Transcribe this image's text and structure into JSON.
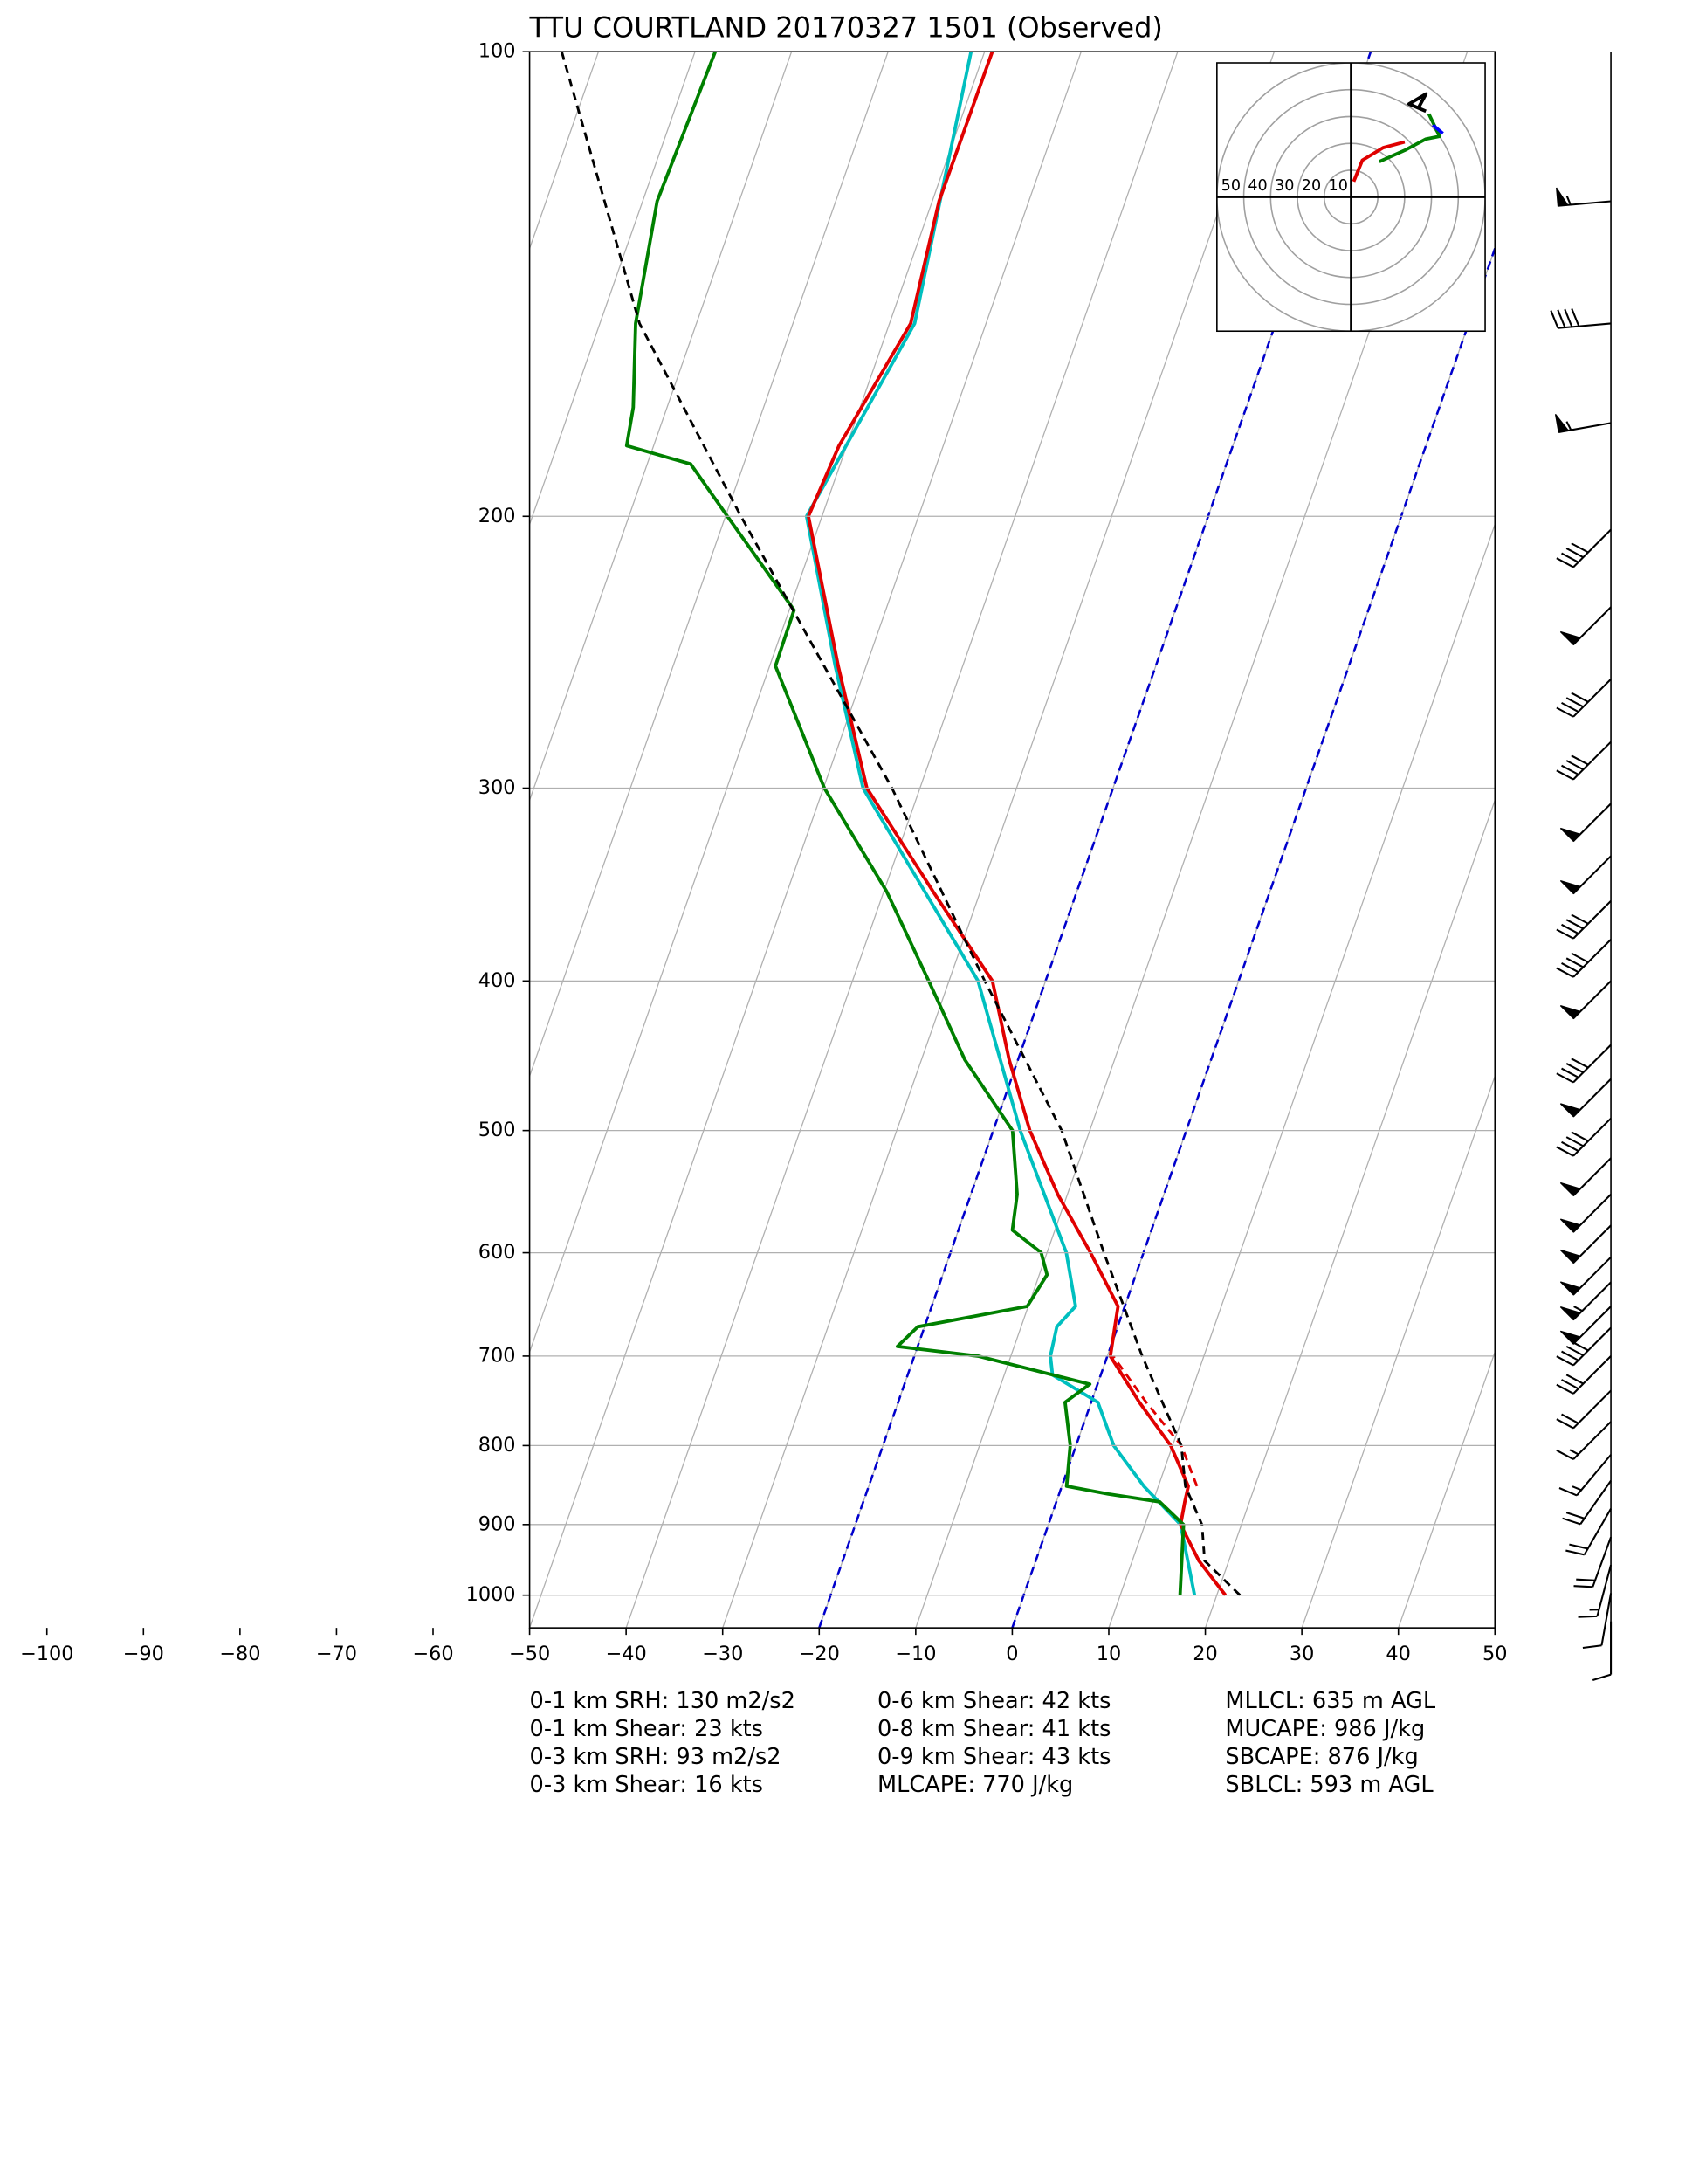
{
  "chart_data": {
    "type": "skewt",
    "title": "TTU COURTLAND 20170327 1501   (Observed)",
    "xlim": [
      -50,
      50
    ],
    "ylim": [
      1050,
      100
    ],
    "log_y": true,
    "grid": true,
    "xticks": [
      {
        "value": -100,
        "label": "−100"
      },
      {
        "value": -90,
        "label": "−90"
      },
      {
        "value": -80,
        "label": "−80"
      },
      {
        "value": -70,
        "label": "−70"
      },
      {
        "value": -60,
        "label": "−60"
      },
      {
        "value": -50,
        "label": "−50"
      },
      {
        "value": -40,
        "label": "−40"
      },
      {
        "value": -30,
        "label": "−30"
      },
      {
        "value": -20,
        "label": "−20"
      },
      {
        "value": -10,
        "label": "−10"
      },
      0,
      10,
      20,
      30,
      40,
      50
    ],
    "yticks": [
      100,
      200,
      300,
      400,
      500,
      600,
      700,
      800,
      900,
      1000
    ],
    "highlight_isotherms": {
      "color": "#0000cc",
      "values": [
        -20,
        0
      ]
    },
    "series": [
      {
        "color": "#00bfbf",
        "dashed": false,
        "pressure": [
          1000,
          900,
          850,
          800,
          750,
          720,
          700,
          670,
          650,
          600,
          500,
          400,
          300,
          250,
          200,
          150,
          100
        ],
        "temperature": [
          17.7,
          13.7,
          8.5,
          3.9,
          0.7,
          -5.0,
          -5.9,
          -6.3,
          -5.1,
          -8.0,
          -17.2,
          -27.0,
          -45.9,
          -53.2,
          -61.6,
          -57.4,
          -61.4
        ]
      },
      {
        "color": "#e00000",
        "dashed": false,
        "pressure": [
          1000,
          950,
          900,
          870,
          850,
          800,
          750,
          700,
          650,
          600,
          550,
          500,
          450,
          400,
          350,
          300,
          250,
          200,
          180,
          150,
          125,
          100
        ],
        "temperature": [
          20.9,
          16.9,
          13.7,
          13.3,
          13.1,
          9.8,
          5.0,
          0.3,
          -0.7,
          -5.5,
          -11.0,
          -16.2,
          -20.9,
          -25.5,
          -34.9,
          -45.5,
          -52.9,
          -61.4,
          -60.8,
          -57.8,
          -59.3,
          -59.2
        ]
      },
      {
        "color": "#e00000",
        "dashed": true,
        "pressure": [
          850,
          800,
          750,
          700
        ],
        "temperature": [
          14.0,
          10.9,
          5.7,
          0.6
        ]
      },
      {
        "color": "#008000",
        "dashed": false,
        "pressure": [
          1000,
          900,
          870,
          860,
          850,
          800,
          750,
          730,
          700,
          690,
          670,
          650,
          620,
          600,
          580,
          550,
          500,
          450,
          400,
          350,
          300,
          250,
          230,
          200,
          185,
          180,
          170,
          150,
          125,
          100
        ],
        "temperature": [
          16.2,
          14.0,
          10.7,
          5.1,
          0.5,
          -0.6,
          -2.7,
          -0.8,
          -13.4,
          -22.1,
          -20.7,
          -10.1,
          -9.2,
          -10.6,
          -14.4,
          -15.2,
          -18.0,
          -25.5,
          -32.1,
          -39.7,
          -49.9,
          -59.4,
          -59.5,
          -69.8,
          -75.5,
          -82.8,
          -83.5,
          -86.3,
          -88.5,
          -87.9
        ]
      },
      {
        "color": "#000000",
        "dashed": true,
        "pressure": [
          1000,
          950,
          900,
          850,
          800,
          700,
          600,
          500,
          400,
          300,
          200,
          150,
          100
        ],
        "temperature": [
          22.4,
          17.5,
          15.9,
          12.8,
          10.9,
          3.6,
          -4.1,
          -12.9,
          -26.3,
          -42.9,
          -68.4,
          -85.9,
          -103.8
        ]
      }
    ],
    "wind_barbs": {
      "pressure": [
        125,
        150,
        174,
        204,
        229,
        255,
        280,
        307,
        332,
        355,
        376,
        400,
        440,
        463,
        491,
        521,
        550,
        576,
        604,
        627,
        650,
        671,
        700,
        737,
        772,
        811,
        843,
        879,
        917,
        956,
        997,
        1040
      ],
      "direction": [
        265,
        265,
        260,
        225,
        225,
        225,
        225,
        225,
        225,
        225,
        225,
        225,
        225,
        225,
        225,
        225,
        225,
        225,
        225,
        225,
        225,
        225,
        225,
        225,
        225,
        220,
        215,
        210,
        200,
        195,
        190,
        180
      ],
      "speed": [
        55,
        40,
        55,
        40,
        50,
        40,
        40,
        50,
        50,
        40,
        40,
        50,
        40,
        50,
        40,
        50,
        50,
        50,
        50,
        55,
        50,
        40,
        30,
        20,
        15,
        15,
        20,
        20,
        20,
        15,
        10,
        10
      ]
    },
    "hodograph": {
      "lim": [
        -50,
        50
      ],
      "rings": [
        10,
        20,
        30,
        40,
        50
      ],
      "ring_labels": [
        50,
        40,
        30,
        20,
        10
      ],
      "segments": [
        {
          "color": "#e00000",
          "u": [
            1,
            4.2,
            12,
            20
          ],
          "v": [
            5.8,
            13.7,
            18.4,
            20.5
          ]
        },
        {
          "color": "#008000",
          "u": [
            10.5,
            20,
            27.9,
            33,
            29
          ],
          "v": [
            13.2,
            17.4,
            21.6,
            22.6,
            31
          ]
        },
        {
          "color": "#0000ff",
          "u": [
            30.5,
            34.2
          ],
          "v": [
            26.8,
            23.7
          ]
        },
        {
          "color": "#000000",
          "u": [
            27.9,
            21.6,
            27.9,
            25
          ],
          "v": [
            32,
            34.7,
            38.4,
            33
          ]
        }
      ]
    },
    "stats": [
      [
        "0-1 km SRH: 130 m2/s2",
        "0-1 km Shear: 23 kts",
        "0-3 km SRH: 93 m2/s2",
        "0-3 km Shear: 16 kts"
      ],
      [
        "0-6 km Shear: 42 kts",
        "0-8 km Shear: 41 kts",
        "0-9 km Shear: 43 kts",
        "MLCAPE: 770 J/kg"
      ],
      [
        "MLLCL: 635 m AGL",
        "MUCAPE: 986 J/kg",
        "SBCAPE: 876 J/kg",
        "SBLCL: 593 m AGL"
      ]
    ]
  }
}
